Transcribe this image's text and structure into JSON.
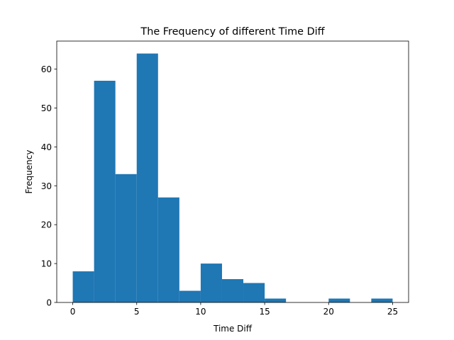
{
  "chart_data": {
    "type": "bar",
    "title": "The Frequency of different Time Diff",
    "xlabel": "Time Diff",
    "ylabel": "Frequency",
    "xlim": [
      -1.25,
      26.25
    ],
    "ylim": [
      0,
      67.2
    ],
    "x_ticks": [
      0,
      5,
      10,
      15,
      20,
      25
    ],
    "y_ticks": [
      0,
      10,
      20,
      30,
      40,
      50,
      60
    ],
    "bins": [
      {
        "start": 0.0,
        "end": 1.667,
        "count": 8
      },
      {
        "start": 1.667,
        "end": 3.333,
        "count": 57
      },
      {
        "start": 3.333,
        "end": 5.0,
        "count": 33
      },
      {
        "start": 5.0,
        "end": 6.667,
        "count": 64
      },
      {
        "start": 6.667,
        "end": 8.333,
        "count": 27
      },
      {
        "start": 8.333,
        "end": 10.0,
        "count": 3
      },
      {
        "start": 10.0,
        "end": 11.667,
        "count": 10
      },
      {
        "start": 11.667,
        "end": 13.333,
        "count": 6
      },
      {
        "start": 13.333,
        "end": 15.0,
        "count": 5
      },
      {
        "start": 15.0,
        "end": 16.667,
        "count": 1
      },
      {
        "start": 16.667,
        "end": 18.333,
        "count": 0
      },
      {
        "start": 18.333,
        "end": 20.0,
        "count": 0
      },
      {
        "start": 20.0,
        "end": 21.667,
        "count": 1
      },
      {
        "start": 21.667,
        "end": 23.333,
        "count": 0
      },
      {
        "start": 23.333,
        "end": 25.0,
        "count": 1
      }
    ],
    "bar_color": "#1f77b4",
    "grid": false,
    "legend": "none"
  }
}
